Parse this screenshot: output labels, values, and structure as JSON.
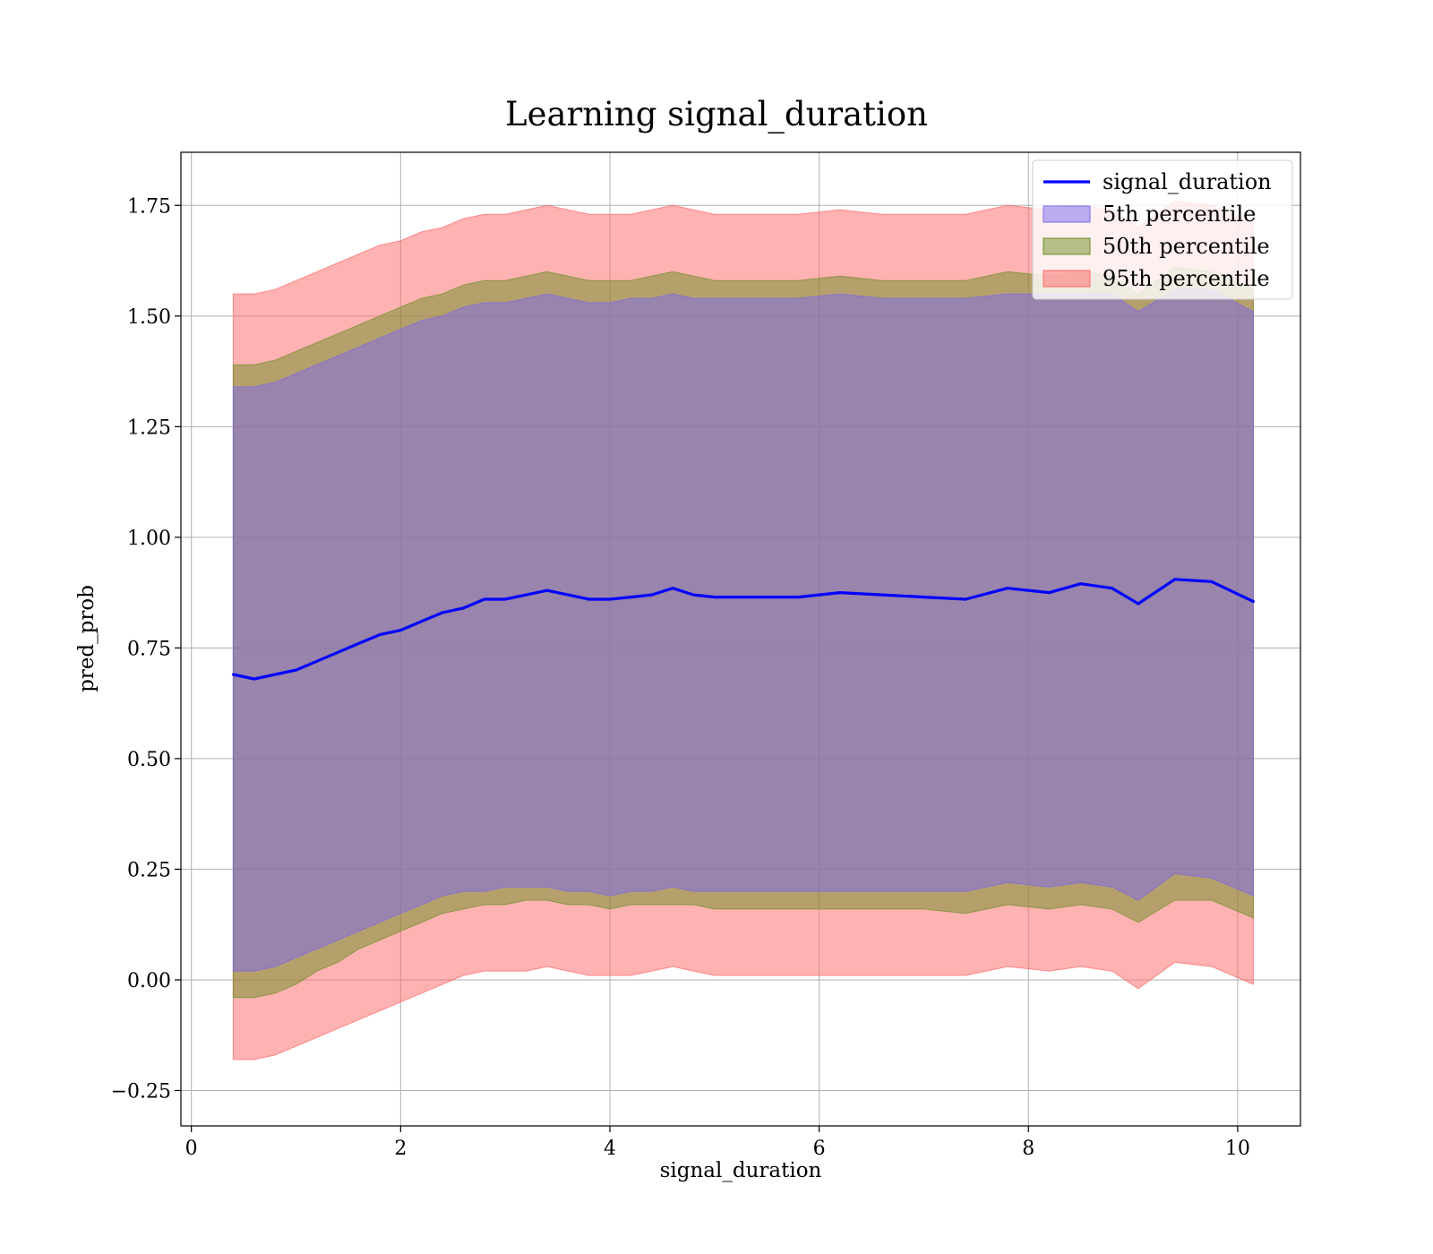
{
  "chart_data": {
    "type": "area",
    "title": "Learning signal_duration",
    "xlabel": "signal_duration",
    "ylabel": "pred_prob",
    "xlim": [
      -0.1,
      10.6
    ],
    "ylim": [
      -0.33,
      1.87
    ],
    "xticks": [
      0,
      2,
      4,
      6,
      8,
      10
    ],
    "xtick_labels": [
      "0",
      "2",
      "4",
      "6",
      "8",
      "10"
    ],
    "yticks": [
      -0.25,
      0.0,
      0.25,
      0.5,
      0.75,
      1.0,
      1.25,
      1.5,
      1.75
    ],
    "ytick_labels": [
      "−0.25",
      "0.00",
      "0.25",
      "0.50",
      "0.75",
      "1.00",
      "1.25",
      "1.50",
      "1.75"
    ],
    "grid": true,
    "legend_position": "top-right",
    "x": [
      0.4,
      0.6,
      0.8,
      1.0,
      1.2,
      1.4,
      1.6,
      1.8,
      2.0,
      2.2,
      2.4,
      2.6,
      2.8,
      3.0,
      3.2,
      3.4,
      3.6,
      3.8,
      4.0,
      4.2,
      4.4,
      4.6,
      4.8,
      5.0,
      5.4,
      5.8,
      6.2,
      6.6,
      7.0,
      7.4,
      7.8,
      8.2,
      8.5,
      8.8,
      9.05,
      9.4,
      9.75,
      10.15
    ],
    "series": [
      {
        "name": "signal_duration",
        "kind": "line",
        "color": "#0000ff",
        "values": [
          0.69,
          0.68,
          0.69,
          0.7,
          0.72,
          0.74,
          0.76,
          0.78,
          0.79,
          0.81,
          0.83,
          0.84,
          0.86,
          0.86,
          0.87,
          0.88,
          0.87,
          0.86,
          0.86,
          0.865,
          0.87,
          0.885,
          0.87,
          0.865,
          0.865,
          0.865,
          0.875,
          0.87,
          0.865,
          0.86,
          0.885,
          0.875,
          0.895,
          0.885,
          0.85,
          0.905,
          0.9,
          0.855
        ]
      },
      {
        "name": "5th percentile",
        "kind": "band",
        "color": "#7b68ee",
        "lower": [
          0.02,
          0.02,
          0.03,
          0.05,
          0.07,
          0.09,
          0.11,
          0.13,
          0.15,
          0.17,
          0.19,
          0.2,
          0.2,
          0.21,
          0.21,
          0.21,
          0.2,
          0.2,
          0.19,
          0.2,
          0.2,
          0.21,
          0.2,
          0.2,
          0.2,
          0.2,
          0.2,
          0.2,
          0.2,
          0.2,
          0.22,
          0.21,
          0.22,
          0.21,
          0.18,
          0.24,
          0.23,
          0.19
        ],
        "upper": [
          1.34,
          1.34,
          1.35,
          1.37,
          1.39,
          1.41,
          1.43,
          1.45,
          1.47,
          1.49,
          1.5,
          1.52,
          1.53,
          1.53,
          1.54,
          1.55,
          1.54,
          1.53,
          1.53,
          1.54,
          1.54,
          1.55,
          1.54,
          1.54,
          1.54,
          1.54,
          1.55,
          1.54,
          1.54,
          1.54,
          1.55,
          1.55,
          1.55,
          1.55,
          1.51,
          1.56,
          1.56,
          1.51
        ]
      },
      {
        "name": "50th percentile",
        "kind": "band",
        "color": "#6b8e23",
        "lower": [
          -0.04,
          -0.04,
          -0.03,
          -0.01,
          0.02,
          0.04,
          0.07,
          0.09,
          0.11,
          0.13,
          0.15,
          0.16,
          0.17,
          0.17,
          0.18,
          0.18,
          0.17,
          0.17,
          0.16,
          0.17,
          0.17,
          0.17,
          0.17,
          0.16,
          0.16,
          0.16,
          0.16,
          0.16,
          0.16,
          0.15,
          0.17,
          0.16,
          0.17,
          0.16,
          0.13,
          0.18,
          0.18,
          0.14
        ],
        "upper": [
          1.39,
          1.39,
          1.4,
          1.42,
          1.44,
          1.46,
          1.48,
          1.5,
          1.52,
          1.54,
          1.55,
          1.57,
          1.58,
          1.58,
          1.59,
          1.6,
          1.59,
          1.58,
          1.58,
          1.58,
          1.59,
          1.6,
          1.59,
          1.58,
          1.58,
          1.58,
          1.59,
          1.58,
          1.58,
          1.58,
          1.6,
          1.59,
          1.6,
          1.59,
          1.55,
          1.61,
          1.6,
          1.56
        ]
      },
      {
        "name": "95th percentile",
        "kind": "band",
        "color": "#ff6666",
        "lower": [
          -0.18,
          -0.18,
          -0.17,
          -0.15,
          -0.13,
          -0.11,
          -0.09,
          -0.07,
          -0.05,
          -0.03,
          -0.01,
          0.01,
          0.02,
          0.02,
          0.02,
          0.03,
          0.02,
          0.01,
          0.01,
          0.01,
          0.02,
          0.03,
          0.02,
          0.01,
          0.01,
          0.01,
          0.01,
          0.01,
          0.01,
          0.01,
          0.03,
          0.02,
          0.03,
          0.02,
          -0.02,
          0.04,
          0.03,
          -0.01
        ],
        "upper": [
          1.55,
          1.55,
          1.56,
          1.58,
          1.6,
          1.62,
          1.64,
          1.66,
          1.67,
          1.69,
          1.7,
          1.72,
          1.73,
          1.73,
          1.74,
          1.75,
          1.74,
          1.73,
          1.73,
          1.73,
          1.74,
          1.75,
          1.74,
          1.73,
          1.73,
          1.73,
          1.74,
          1.73,
          1.73,
          1.73,
          1.75,
          1.74,
          1.75,
          1.74,
          1.7,
          1.76,
          1.75,
          1.71
        ]
      }
    ]
  }
}
